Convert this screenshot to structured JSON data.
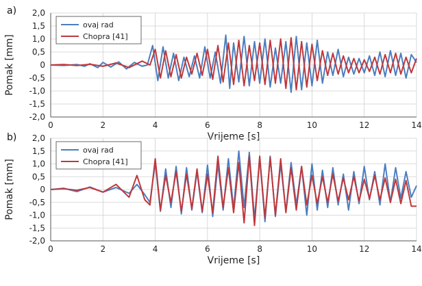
{
  "chart_data": [
    {
      "type": "line",
      "panel_label": "a)",
      "xlabel": "Vrijeme [s]",
      "ylabel": "Pomak [mm]",
      "xlim": [
        0,
        14
      ],
      "ylim": [
        -2.0,
        2.0
      ],
      "xticks": [
        "0",
        "2",
        "4",
        "6",
        "8",
        "10",
        "12",
        "14"
      ],
      "yticks": [
        "2,0",
        "1,5",
        "1,0",
        "0,5",
        "0",
        "-0,5",
        "-1,0",
        "-1,5",
        "-2,0"
      ],
      "grid": true,
      "legend_position": "top-left",
      "series": [
        {
          "name": "ovaj rad",
          "color": "#4a7ec0",
          "x": [
            0,
            0.5,
            1.0,
            1.3,
            1.5,
            1.8,
            2.0,
            2.3,
            2.6,
            2.9,
            3.2,
            3.5,
            3.7,
            3.9,
            4.1,
            4.3,
            4.5,
            4.7,
            4.9,
            5.1,
            5.3,
            5.5,
            5.7,
            5.9,
            6.1,
            6.3,
            6.5,
            6.7,
            6.85,
            7.0,
            7.2,
            7.4,
            7.6,
            7.8,
            8.0,
            8.2,
            8.4,
            8.6,
            8.8,
            9.0,
            9.2,
            9.4,
            9.6,
            9.8,
            10.0,
            10.2,
            10.4,
            10.6,
            10.8,
            11.0,
            11.2,
            11.4,
            11.6,
            11.8,
            12.0,
            12.2,
            12.4,
            12.6,
            12.8,
            13.0,
            13.2,
            13.4,
            13.6,
            13.8,
            14.0
          ],
          "values": [
            0,
            -0.02,
            0.02,
            -0.05,
            0.05,
            -0.1,
            0.1,
            -0.08,
            0.12,
            -0.15,
            0.1,
            -0.05,
            0.0,
            0.75,
            -0.6,
            0.7,
            -0.5,
            0.45,
            -0.6,
            0.3,
            -0.45,
            0.35,
            -0.5,
            0.7,
            -0.5,
            0.5,
            -0.7,
            1.15,
            -0.9,
            0.85,
            -0.65,
            1.1,
            -0.8,
            0.9,
            -0.7,
            1.0,
            -0.85,
            0.65,
            -0.7,
            0.9,
            -1.05,
            1.1,
            -0.95,
            0.85,
            -0.8,
            0.95,
            -0.7,
            0.5,
            -0.4,
            0.6,
            -0.45,
            0.3,
            -0.35,
            0.25,
            -0.3,
            0.35,
            -0.4,
            0.5,
            -0.45,
            0.55,
            -0.4,
            0.45,
            -0.5,
            0.4,
            0.1
          ]
        },
        {
          "name": "Chopra [41]",
          "color": "#c0373a",
          "x": [
            0,
            0.5,
            1.0,
            1.5,
            2.0,
            2.5,
            3.0,
            3.5,
            3.8,
            4.0,
            4.2,
            4.4,
            4.6,
            4.8,
            5.0,
            5.2,
            5.4,
            5.6,
            5.8,
            6.0,
            6.2,
            6.4,
            6.6,
            6.8,
            7.0,
            7.2,
            7.4,
            7.6,
            7.8,
            8.0,
            8.2,
            8.4,
            8.6,
            8.8,
            9.0,
            9.2,
            9.4,
            9.6,
            9.8,
            10.0,
            10.2,
            10.4,
            10.6,
            10.8,
            11.0,
            11.2,
            11.4,
            11.6,
            11.8,
            12.0,
            12.2,
            12.4,
            12.6,
            12.8,
            13.0,
            13.2,
            13.4,
            13.6,
            13.8,
            14.0
          ],
          "values": [
            0,
            0.02,
            -0.02,
            0.03,
            -0.05,
            0.08,
            -0.1,
            0.15,
            0.0,
            0.6,
            -0.5,
            0.55,
            -0.45,
            0.4,
            -0.5,
            0.3,
            -0.35,
            0.45,
            -0.4,
            0.6,
            -0.55,
            0.75,
            -0.65,
            0.85,
            -0.75,
            0.95,
            -0.8,
            0.75,
            -0.6,
            0.85,
            -0.75,
            0.95,
            -0.7,
            1.0,
            -0.9,
            1.05,
            -0.95,
            0.9,
            -0.85,
            0.8,
            -0.6,
            0.55,
            -0.4,
            0.45,
            -0.35,
            0.35,
            -0.3,
            0.25,
            -0.3,
            0.2,
            -0.25,
            0.3,
            -0.35,
            0.4,
            -0.3,
            0.45,
            -0.35,
            0.3,
            -0.3,
            0.25
          ]
        }
      ]
    },
    {
      "type": "line",
      "panel_label": "b)",
      "xlabel": "Vrijeme [s]",
      "ylabel": "Pomak [mm]",
      "xlim": [
        0,
        14
      ],
      "ylim": [
        -2.0,
        2.0
      ],
      "xticks": [
        "0",
        "2",
        "4",
        "6",
        "8",
        "10",
        "12",
        "14"
      ],
      "yticks": [
        "2,0",
        "1,5",
        "1,0",
        "0,5",
        "0",
        "-0,5",
        "-1,0",
        "-1,5",
        "-2,0"
      ],
      "grid": true,
      "legend_position": "top-left",
      "series": [
        {
          "name": "ovaj rad",
          "color": "#4a7ec0",
          "x": [
            0,
            0.5,
            1.0,
            1.5,
            2.0,
            2.5,
            3.0,
            3.3,
            3.6,
            3.8,
            4.0,
            4.2,
            4.4,
            4.6,
            4.8,
            5.0,
            5.2,
            5.4,
            5.6,
            5.8,
            6.0,
            6.2,
            6.4,
            6.6,
            6.8,
            7.0,
            7.2,
            7.4,
            7.6,
            7.8,
            8.0,
            8.2,
            8.4,
            8.6,
            8.8,
            9.0,
            9.2,
            9.4,
            9.6,
            9.8,
            10.0,
            10.2,
            10.4,
            10.6,
            10.8,
            11.0,
            11.2,
            11.4,
            11.6,
            11.8,
            12.0,
            12.2,
            12.4,
            12.6,
            12.8,
            13.0,
            13.2,
            13.4,
            13.6,
            13.8,
            14.0
          ],
          "values": [
            0,
            0.05,
            -0.08,
            0.1,
            -0.1,
            0.08,
            -0.15,
            0.2,
            -0.2,
            -0.5,
            1.05,
            -0.85,
            0.8,
            -0.7,
            0.9,
            -0.95,
            0.85,
            -0.8,
            0.7,
            -0.9,
            0.95,
            -1.05,
            1.0,
            -0.8,
            1.2,
            -0.75,
            1.5,
            -0.7,
            1.45,
            -1.15,
            1.25,
            -1.25,
            1.3,
            -1.05,
            1.0,
            -0.85,
            1.05,
            -0.6,
            0.9,
            -1.0,
            1.0,
            -0.8,
            0.75,
            -0.7,
            0.85,
            -0.6,
            0.6,
            -0.8,
            0.7,
            -0.55,
            0.9,
            -0.4,
            0.7,
            -0.6,
            1.0,
            -0.5,
            0.85,
            -0.35,
            0.7,
            -0.3,
            0.15
          ]
        },
        {
          "name": "Chopra [41]",
          "color": "#c0373a",
          "x": [
            0,
            0.5,
            1.0,
            1.5,
            2.0,
            2.5,
            3.0,
            3.3,
            3.6,
            3.8,
            4.0,
            4.2,
            4.4,
            4.6,
            4.8,
            5.0,
            5.2,
            5.4,
            5.6,
            5.8,
            6.0,
            6.2,
            6.4,
            6.6,
            6.8,
            7.0,
            7.2,
            7.4,
            7.6,
            7.8,
            8.0,
            8.2,
            8.4,
            8.6,
            8.8,
            9.0,
            9.2,
            9.4,
            9.6,
            9.8,
            10.0,
            10.2,
            10.4,
            10.6,
            10.8,
            11.0,
            11.2,
            11.4,
            11.6,
            11.8,
            12.0,
            12.2,
            12.4,
            12.6,
            12.8,
            13.0,
            13.2,
            13.4,
            13.6,
            13.8,
            14.0
          ],
          "values": [
            0,
            0.03,
            -0.03,
            0.08,
            -0.1,
            0.2,
            -0.3,
            0.55,
            -0.4,
            -0.6,
            1.2,
            -0.8,
            0.55,
            -0.5,
            0.7,
            -0.85,
            0.6,
            -0.75,
            0.8,
            -0.85,
            0.6,
            -0.9,
            1.3,
            -0.7,
            0.85,
            -0.9,
            1.05,
            -1.3,
            1.3,
            -1.4,
            1.3,
            -1.1,
            1.25,
            -1.0,
            1.2,
            -0.9,
            0.85,
            -0.8,
            0.9,
            -0.6,
            0.55,
            -0.55,
            0.5,
            -0.5,
            0.6,
            -0.45,
            0.45,
            -0.4,
            0.5,
            -0.45,
            0.4,
            -0.35,
            0.55,
            -0.4,
            0.45,
            -0.5,
            0.4,
            -0.55,
            0.35,
            -0.65,
            -0.65
          ]
        }
      ]
    }
  ]
}
